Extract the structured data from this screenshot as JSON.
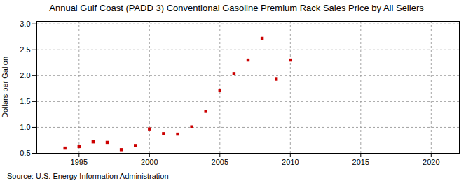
{
  "chart_data": {
    "type": "scatter",
    "title": "Annual Gulf Coast (PADD 3) Conventional Gasoline Premium Rack Sales Price by All Sellers",
    "ylabel": "Dollars per Gallon",
    "source": "Source: U.S. Energy Information Administration",
    "x": [
      1994,
      1995,
      1996,
      1997,
      1998,
      1999,
      2000,
      2001,
      2002,
      2003,
      2004,
      2005,
      2006,
      2007,
      2008,
      2009,
      2010
    ],
    "values": [
      0.6,
      0.63,
      0.72,
      0.71,
      0.57,
      0.65,
      0.97,
      0.88,
      0.87,
      1.01,
      1.31,
      1.71,
      2.04,
      2.3,
      2.72,
      1.93,
      2.3
    ],
    "color": "#cc0000",
    "marker": "square",
    "xlim": [
      1992,
      2022
    ],
    "xticks": [
      1995,
      2000,
      2005,
      2010,
      2015,
      2020
    ],
    "ylim": [
      0.5,
      3.05
    ],
    "yticks": [
      0.5,
      {
        "value": 1.0,
        "label": "1.0"
      },
      1.5,
      {
        "value": 2.0,
        "label": "2.0"
      },
      2.5,
      {
        "value": 3.0,
        "label": "3.0"
      }
    ],
    "grid": true
  }
}
